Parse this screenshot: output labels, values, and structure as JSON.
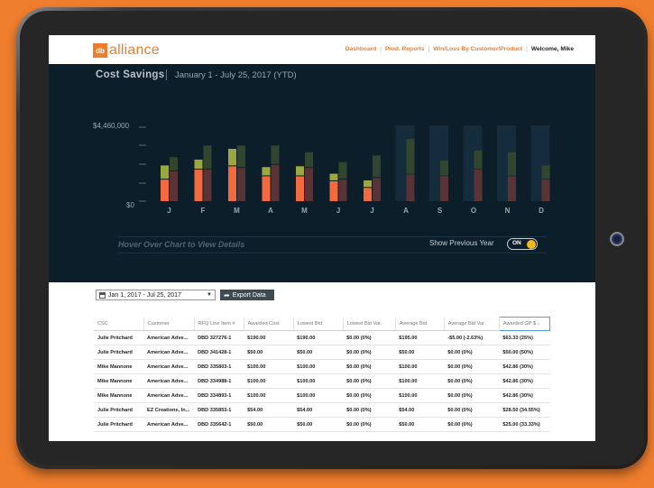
{
  "header": {
    "logo_mark": "db",
    "logo_text": "alliance",
    "nav": [
      "Dashboard",
      "Prod. Reports",
      "Win/Loss By Customer/Product"
    ],
    "welcome": "Welcome, Mike"
  },
  "hero": {
    "title": "Cost Savings",
    "range": "January 1 - July 25, 2017 (YTD)",
    "hover_hint": "Hover Over Chart to View Details",
    "toggle_label": "Show Previous Year",
    "toggle_state": "ON"
  },
  "chart_data": {
    "type": "bar",
    "y_tick_labels": [
      "$4,460,000",
      "$0"
    ],
    "ylim": [
      0,
      4460000
    ],
    "categories": [
      "J",
      "F",
      "M",
      "A",
      "M",
      "J",
      "J",
      "A",
      "S",
      "O",
      "N",
      "D"
    ],
    "series": [
      {
        "values": [
          1300000,
          1900000,
          2100000,
          1500000,
          1500000,
          1200000,
          800000,
          0,
          0,
          0,
          0,
          0
        ]
      },
      {
        "values": [
          800000,
          550000,
          1000000,
          500000,
          550000,
          400000,
          400000,
          0,
          0,
          0,
          0,
          0
        ]
      },
      {
        "values": [
          1800000,
          1900000,
          2000000,
          2200000,
          2000000,
          1300000,
          1400000,
          1600000,
          1500000,
          1900000,
          1500000,
          1300000
        ]
      },
      {
        "values": [
          800000,
          1400000,
          1300000,
          1100000,
          900000,
          1000000,
          1300000,
          2100000,
          900000,
          1100000,
          1400000,
          800000
        ]
      }
    ],
    "future_months_from_index": 7,
    "colors": {
      "current": "#f26a3d",
      "current_top": "#9aa83f",
      "previous": "#5a3336",
      "previous_top": "#32452e",
      "future_column": "#142c3b"
    }
  },
  "filters": {
    "date_range": "Jan 1, 2017 - Jul 25, 2017",
    "export_label": "Export Data"
  },
  "table": {
    "columns": [
      "CSC",
      "Customer",
      "RFQ Line Item #",
      "Awarded Cost",
      "Lowest Bid",
      "Lowest Bid Var.",
      "Average Bid",
      "Average Bid Var.",
      "Awarded GP $ ↓"
    ],
    "rows": [
      [
        "Julie Pritchard",
        "American Adve...",
        "DBD 327276-1",
        "$190.00",
        "$190.00",
        "$0.00 (0%)",
        "$195.00",
        "-$5.00 (-2.63%)",
        "$63.33 (25%)"
      ],
      [
        "Julie Pritchard",
        "American Adve...",
        "DBD 341428-1",
        "$50.00",
        "$50.00",
        "$0.00 (0%)",
        "$50.00",
        "$0.00 (0%)",
        "$50.00 (50%)"
      ],
      [
        "Mike Mannone",
        "American Adve...",
        "DBD 335803-1",
        "$100.00",
        "$100.00",
        "$0.00 (0%)",
        "$100.00",
        "$0.00 (0%)",
        "$42.86 (30%)"
      ],
      [
        "Mike Mannone",
        "American Adve...",
        "DBD 334988-1",
        "$100.00",
        "$100.00",
        "$0.00 (0%)",
        "$100.00",
        "$0.00 (0%)",
        "$42.86 (30%)"
      ],
      [
        "Mike Mannone",
        "American Adve...",
        "DBD 334893-1",
        "$100.00",
        "$100.00",
        "$0.00 (0%)",
        "$100.00",
        "$0.00 (0%)",
        "$42.86 (30%)"
      ],
      [
        "Julie Pritchard",
        "EZ Creations, In...",
        "DBD 335853-1",
        "$54.00",
        "$54.00",
        "$0.00 (0%)",
        "$54.00",
        "$0.00 (0%)",
        "$28.50 (34.55%)"
      ],
      [
        "Julie Pritchard",
        "American Adve...",
        "DBD 335642-1",
        "$50.00",
        "$50.00",
        "$0.00 (0%)",
        "$50.00",
        "$0.00 (0%)",
        "$25.00 (33.33%)"
      ]
    ]
  }
}
